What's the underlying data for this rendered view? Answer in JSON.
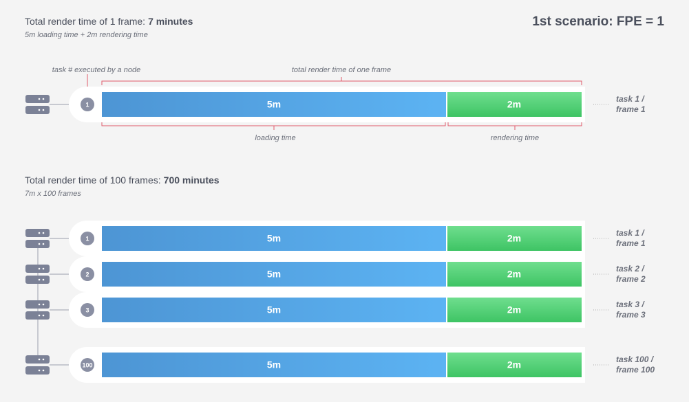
{
  "section1": {
    "title_prefix": "Total render time of 1 frame:",
    "title_value": "7 minutes",
    "subtitle": "5m loading time + 2m rendering time"
  },
  "scenario_title": "1st scenario:  FPE = 1",
  "single": {
    "node_label": "task # executed by a node",
    "total_label": "total render time of one frame",
    "loading_label": "loading time",
    "rendering_label": "rendering time",
    "row": {
      "task": "1",
      "loading": "5m",
      "rendering": "2m",
      "line1": "task 1 /",
      "line2": "frame 1"
    }
  },
  "section2": {
    "title_prefix": "Total render time of 100 frames:",
    "title_value": "700 minutes",
    "subtitle": "7m x 100 frames",
    "rows": [
      {
        "task": "1",
        "loading": "5m",
        "rendering": "2m",
        "line1": "task 1 /",
        "line2": "frame 1"
      },
      {
        "task": "2",
        "loading": "5m",
        "rendering": "2m",
        "line1": "task 2 /",
        "line2": "frame 2"
      },
      {
        "task": "3",
        "loading": "5m",
        "rendering": "2m",
        "line1": "task 3 /",
        "line2": "frame 3"
      },
      {
        "task": "100",
        "loading": "5m",
        "rendering": "2m",
        "line1": "task 100 /",
        "line2": "frame 100"
      }
    ]
  }
}
